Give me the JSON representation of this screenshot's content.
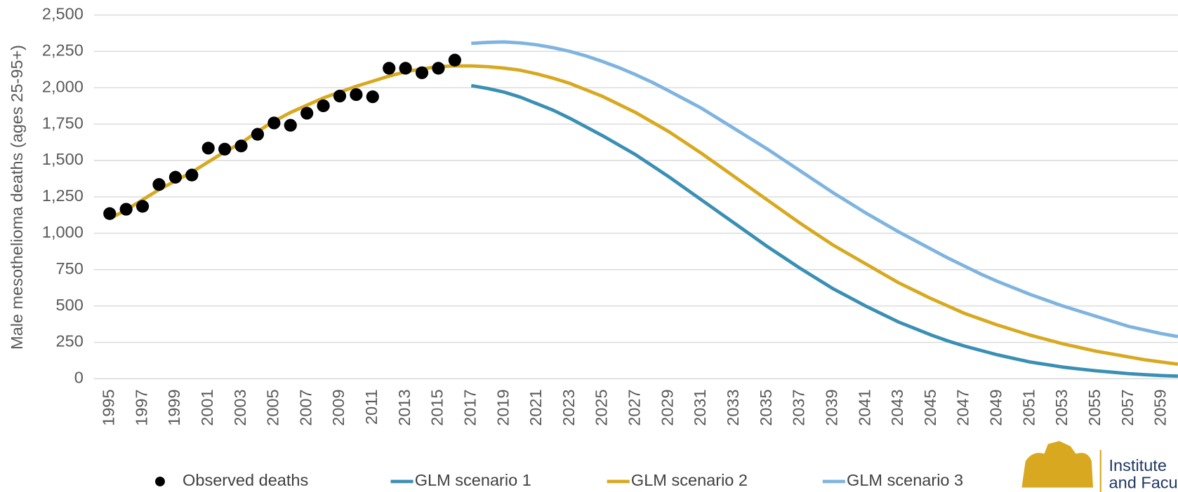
{
  "chart_data": {
    "type": "line",
    "y_label": "Male mesothelioma deaths (ages 25-95+)",
    "categories": [
      "1995",
      null,
      "1997",
      null,
      "1999",
      null,
      "2001",
      null,
      "2003",
      null,
      "2005",
      null,
      "2007",
      null,
      "2009",
      null,
      "2011",
      null,
      "2013",
      null,
      "2015",
      null,
      "2017",
      null,
      "2019",
      null,
      "2021",
      null,
      "2023",
      null,
      "2025",
      null,
      "2027",
      null,
      "2029",
      null,
      "2031",
      null,
      "2033",
      null,
      "2035",
      null,
      "2037",
      null,
      "2039",
      null,
      "2041",
      null,
      "2043",
      null,
      "2045",
      null,
      "2047",
      null,
      "2049",
      null,
      "2051",
      null,
      "2053",
      null,
      "2055",
      null,
      "2057",
      null,
      "2059",
      null
    ],
    "series": [
      {
        "name": "Observed deaths",
        "type": "scatter",
        "color": "#000000",
        "values": [
          1135,
          1165,
          1185,
          1335,
          1385,
          1400,
          1585,
          1578,
          1600,
          1680,
          1758,
          1742,
          1825,
          1876,
          1943,
          1953,
          1938,
          2134,
          2134,
          2103,
          2134,
          2190,
          null,
          null,
          null,
          null,
          null,
          null,
          null,
          null,
          null,
          null,
          null,
          null,
          null,
          null,
          null,
          null,
          null,
          null,
          null,
          null,
          null,
          null,
          null,
          null,
          null,
          null,
          null,
          null,
          null,
          null,
          null,
          null,
          null,
          null,
          null,
          null,
          null,
          null,
          null,
          null,
          null,
          null,
          null,
          null
        ]
      },
      {
        "name": "GLM scenario 1",
        "type": "line",
        "color": "#3a8fb5",
        "values": [
          null,
          null,
          null,
          null,
          null,
          null,
          null,
          null,
          null,
          null,
          null,
          null,
          null,
          null,
          null,
          null,
          null,
          null,
          null,
          null,
          null,
          null,
          2015,
          1995,
          1970,
          1935,
          1890,
          1845,
          1790,
          1730,
          1670,
          1605,
          1540,
          1465,
          1390,
          1310,
          1230,
          1150,
          1070,
          990,
          910,
          835,
          760,
          690,
          620,
          560,
          500,
          445,
          390,
          345,
          300,
          260,
          225,
          195,
          165,
          140,
          115,
          98,
          80,
          67,
          55,
          45,
          35,
          28,
          22,
          18
        ]
      },
      {
        "name": "GLM scenario 2",
        "type": "line",
        "color": "#d8a920",
        "values": [
          1100,
          1160,
          1230,
          1300,
          1360,
          1420,
          1490,
          1560,
          1620,
          1700,
          1770,
          1830,
          1880,
          1930,
          1970,
          2010,
          2045,
          2080,
          2110,
          2130,
          2145,
          2150,
          2150,
          2145,
          2135,
          2120,
          2095,
          2065,
          2030,
          1985,
          1940,
          1885,
          1830,
          1765,
          1700,
          1625,
          1550,
          1470,
          1390,
          1310,
          1230,
          1150,
          1070,
          995,
          920,
          855,
          790,
          725,
          660,
          605,
          550,
          500,
          450,
          410,
          370,
          335,
          300,
          270,
          240,
          215,
          190,
          170,
          150,
          130,
          115,
          100
        ]
      },
      {
        "name": "GLM scenario 3",
        "type": "line",
        "color": "#7fb4e0",
        "values": [
          null,
          null,
          null,
          null,
          null,
          null,
          null,
          null,
          null,
          null,
          null,
          null,
          null,
          null,
          null,
          null,
          null,
          null,
          null,
          null,
          null,
          null,
          2305,
          2312,
          2315,
          2308,
          2295,
          2275,
          2250,
          2218,
          2180,
          2138,
          2090,
          2038,
          1980,
          1920,
          1860,
          1790,
          1720,
          1650,
          1580,
          1505,
          1430,
          1355,
          1280,
          1210,
          1140,
          1075,
          1010,
          950,
          890,
          830,
          775,
          720,
          670,
          625,
          580,
          540,
          500,
          465,
          430,
          395,
          360,
          335,
          310,
          290
        ]
      }
    ],
    "ylim": [
      0,
      2500
    ],
    "yticks": [
      0,
      250,
      500,
      750,
      {
        "value": 1000,
        "label": "1,000"
      },
      {
        "value": 1250,
        "label": "1,250"
      },
      {
        "value": 1500,
        "label": "1,500"
      },
      {
        "value": 1750,
        "label": "1,750"
      },
      {
        "value": 2000,
        "label": "2,000"
      },
      {
        "value": 2250,
        "label": "2,250"
      },
      {
        "value": 2500,
        "label": "2,500"
      }
    ],
    "grid": true,
    "legend": "bottom"
  },
  "logo": {
    "line1": "Institute",
    "line2": "and Facu"
  }
}
